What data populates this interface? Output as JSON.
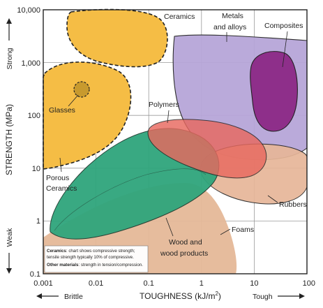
{
  "axes": {
    "x_title": "TOUGHNESS (kJ/m",
    "x_title_sup": "2",
    "x_title_end": ")",
    "y_title": "STRENGTH (MPa)",
    "x_ticks": [
      "0.001",
      "0.01",
      "0.1",
      "1",
      "10",
      "100"
    ],
    "y_ticks": [
      "0.1",
      "1",
      "10",
      "100",
      "1,000",
      "10,000"
    ],
    "x_scale": "log",
    "y_scale": "log",
    "xlim": [
      0.001,
      100
    ],
    "ylim": [
      0.1,
      10000
    ],
    "grid": true
  },
  "side_labels": {
    "brittle": "Brittle",
    "tough": "Tough",
    "strong": "Strong",
    "weak": "Weak"
  },
  "regions": {
    "ceramics": "Ceramics",
    "metals": "Metals and alloys",
    "composites": "Composites",
    "glasses": "Glasses",
    "porous_ceramics": "Porous Ceramics",
    "polymers": "Polymers",
    "rubbers": "Rubbers",
    "foams": "Foams",
    "wood": "Wood and wood products"
  },
  "note": {
    "line1_bold": "Ceramics",
    "line1_rest": ": chart shows compressive strength;",
    "line2": "tensile strength typically 10% of compressive.",
    "line3_bold": "Other materials",
    "line3_rest": ": strength in tension/compression."
  },
  "colors": {
    "ceramics": "#f5bd45",
    "metals": "#b7a6d9",
    "composites": "#8e2f8a",
    "polymers": "#e8695f",
    "rubbers": "#e7b698",
    "foams": "#e5b898",
    "wood": "#2fa57c",
    "glasses": "#c89a2e"
  }
}
